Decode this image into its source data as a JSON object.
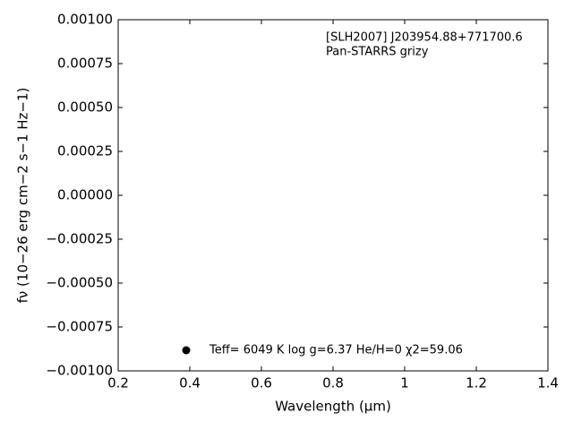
{
  "chart_data": {
    "type": "scatter",
    "xlabel": "Wavelength (μm)",
    "ylabel": "fν (10−26 erg cm−2 s−1 Hz−1)",
    "annotations": [
      "[SLH2007] J203954.88+771700.6",
      "Pan-STARRS grizy"
    ],
    "series": [
      {
        "name": "Teff=  6049 K  log g=6.37  He/H=0  χ2=59.06",
        "color": "#000000",
        "x": [],
        "values": []
      }
    ],
    "legend": "lower center",
    "xlim": [
      0.2,
      1.4
    ],
    "xticks": [
      0.2,
      0.4,
      0.6,
      0.8,
      1.0,
      1.2,
      1.4
    ],
    "ylim": [
      -0.001,
      0.001
    ],
    "yticks": [
      {
        "value": -0.001,
        "label": "−0.00100"
      },
      {
        "value": -0.00075,
        "label": "−0.00075"
      },
      {
        "value": -0.0005,
        "label": "−0.00050"
      },
      {
        "value": -0.00025,
        "label": "−0.00025"
      },
      {
        "value": 0,
        "label": "0.00000"
      },
      {
        "value": 0.00025,
        "label": "0.00025"
      },
      {
        "value": 0.0005,
        "label": "0.00050"
      },
      {
        "value": 0.00075,
        "label": "0.00075"
      },
      {
        "value": 0.001,
        "label": "0.00100"
      }
    ],
    "grid": false
  }
}
